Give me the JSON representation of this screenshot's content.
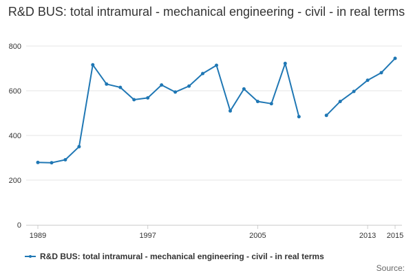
{
  "chart_data": {
    "type": "line",
    "title": "R&D BUS: total intramural - mechanical engineering - civil - in real terms",
    "xlabel": "",
    "ylabel": "",
    "x_ticks": [
      1989,
      1997,
      2005,
      2013,
      2015
    ],
    "y_ticks": [
      0,
      200,
      400,
      600,
      800
    ],
    "xlim": [
      1989,
      2015
    ],
    "ylim": [
      0,
      800
    ],
    "grid": true,
    "legend_position": "bottom-left",
    "colors": {
      "series": "#1f77b4",
      "grid": "#e6e6e6",
      "axis": "#cccccc"
    },
    "series": [
      {
        "name": "R&D BUS: total intramural - mechanical engineering - civil - in real terms",
        "points": [
          {
            "x": 1989,
            "y": 279
          },
          {
            "x": 1990,
            "y": 278
          },
          {
            "x": 1991,
            "y": 291
          },
          {
            "x": 1992,
            "y": 350
          },
          {
            "x": 1993,
            "y": 716
          },
          {
            "x": 1994,
            "y": 630
          },
          {
            "x": 1995,
            "y": 615
          },
          {
            "x": 1996,
            "y": 560
          },
          {
            "x": 1997,
            "y": 568
          },
          {
            "x": 1998,
            "y": 626
          },
          {
            "x": 1999,
            "y": 594
          },
          {
            "x": 2000,
            "y": 621
          },
          {
            "x": 2001,
            "y": 677
          },
          {
            "x": 2002,
            "y": 714
          },
          {
            "x": 2003,
            "y": 510
          },
          {
            "x": 2004,
            "y": 608
          },
          {
            "x": 2005,
            "y": 552
          },
          {
            "x": 2006,
            "y": 542
          },
          {
            "x": 2007,
            "y": 722
          },
          {
            "x": 2008,
            "y": 484
          },
          {
            "x": 2009,
            "y": null
          },
          {
            "x": 2010,
            "y": 490
          },
          {
            "x": 2011,
            "y": 552
          },
          {
            "x": 2012,
            "y": 597
          },
          {
            "x": 2013,
            "y": 647
          },
          {
            "x": 2014,
            "y": 681
          },
          {
            "x": 2015,
            "y": 745
          }
        ]
      }
    ]
  },
  "source_label": "Source:"
}
